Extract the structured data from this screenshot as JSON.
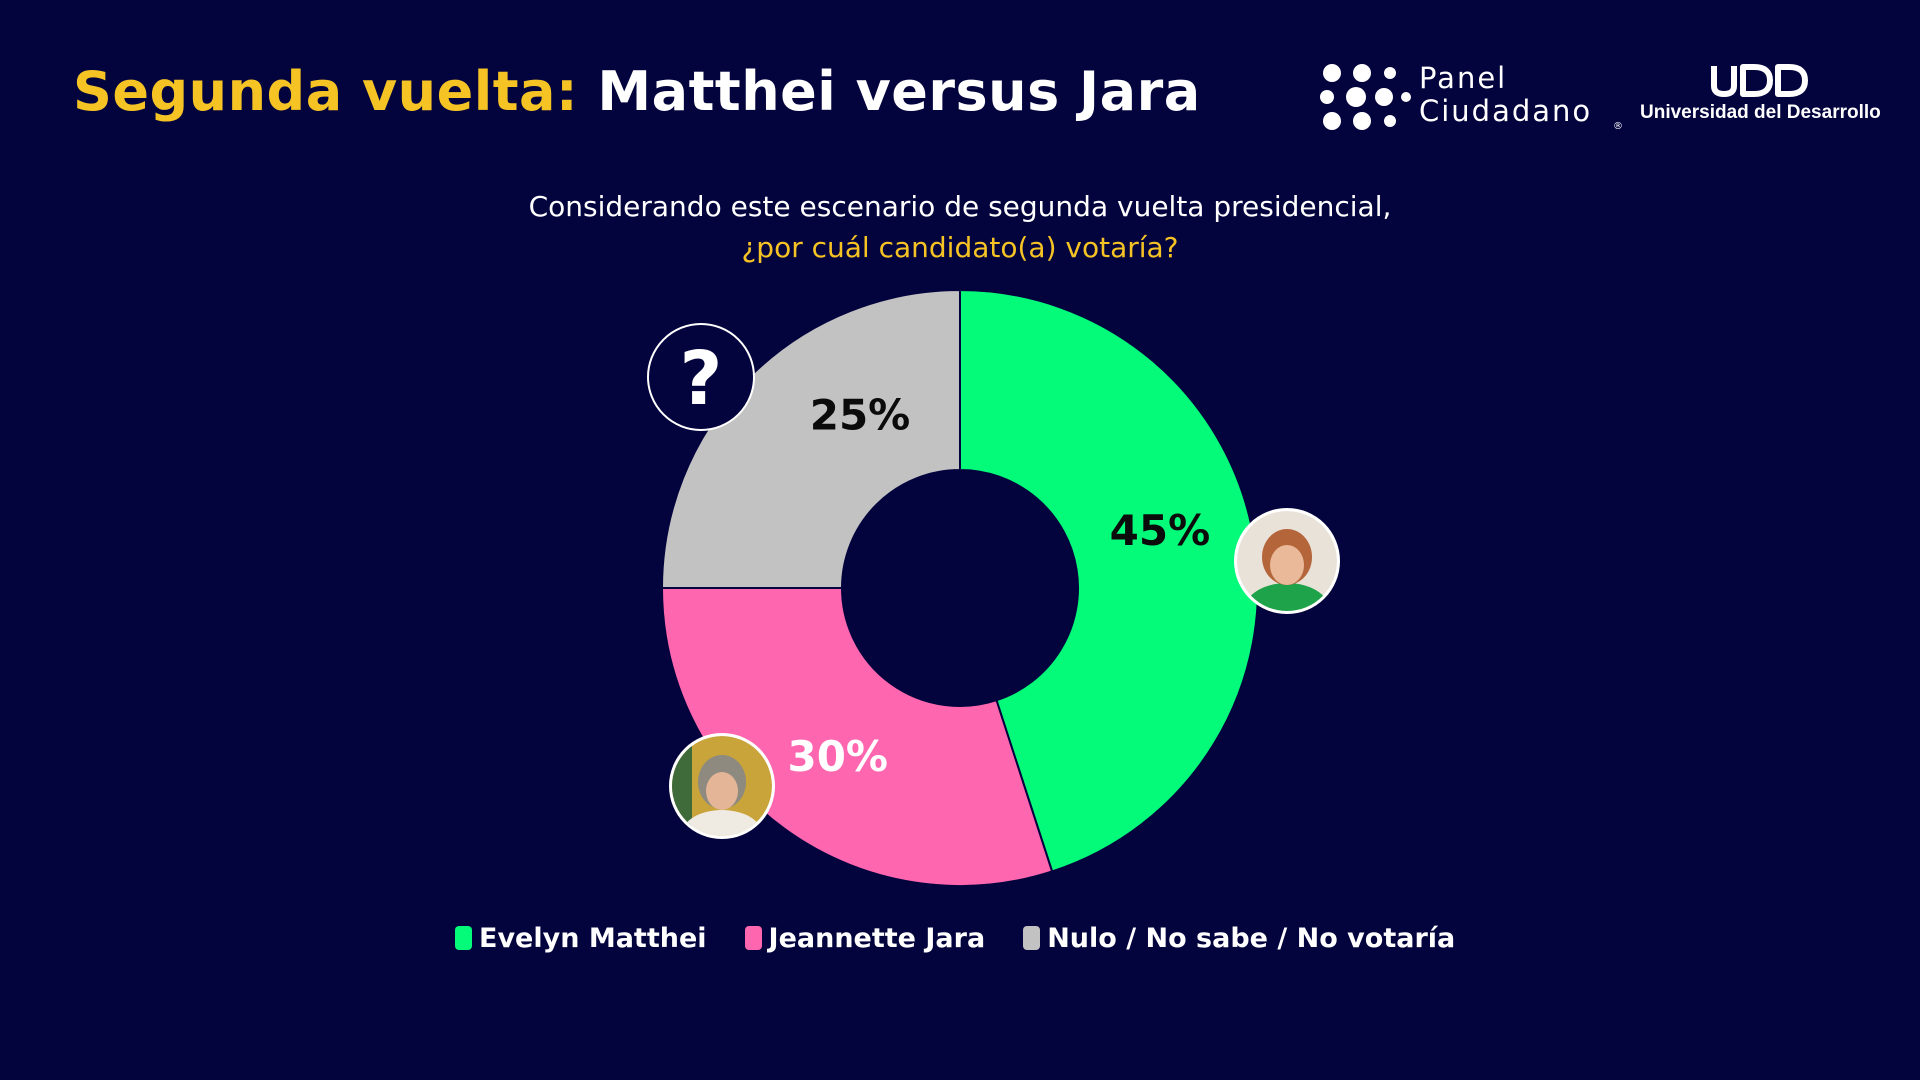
{
  "header": {
    "title_accent": "Segunda vuelta:",
    "title_rest": "Matthei versus Jara"
  },
  "logos": {
    "panel_line1": "Panel",
    "panel_line2": "Ciudadano",
    "panel_reg": "®",
    "udd_name": "Universidad del Desarrollo"
  },
  "question": {
    "line1": "Considerando este escenario de segunda vuelta presidencial,",
    "line2": "¿por cuál candidato(a) votaría?"
  },
  "chart_data": {
    "type": "pie",
    "donut": true,
    "categories": [
      "Evelyn Matthei",
      "Jeannette Jara",
      "Nulo / No sabe / No votaría"
    ],
    "values": [
      45,
      30,
      25
    ],
    "labels": [
      "45%",
      "30%",
      "25%"
    ],
    "colors": [
      "#03fb79",
      "#ff66b0",
      "#c2c2c2"
    ],
    "label_colors": [
      "#0b0b0b",
      "#ffffff",
      "#0b0b0b"
    ],
    "start_angle_deg": 0,
    "direction": "clockwise",
    "legend_position": "bottom",
    "markers": [
      {
        "slice": 0,
        "type": "photo",
        "icon": "matthei-avatar"
      },
      {
        "slice": 1,
        "type": "photo",
        "icon": "jara-avatar"
      },
      {
        "slice": 2,
        "type": "symbol",
        "icon": "question-mark-icon",
        "glyph": "?"
      }
    ]
  },
  "legend": {
    "items": [
      {
        "label": "Evelyn Matthei",
        "color": "#03fb79"
      },
      {
        "label": "Jeannette Jara",
        "color": "#ff66b0"
      },
      {
        "label": "Nulo / No sabe / No votaría",
        "color": "#c2c2c2"
      }
    ]
  },
  "colors": {
    "background": "#03033d",
    "accent": "#f5c324"
  }
}
